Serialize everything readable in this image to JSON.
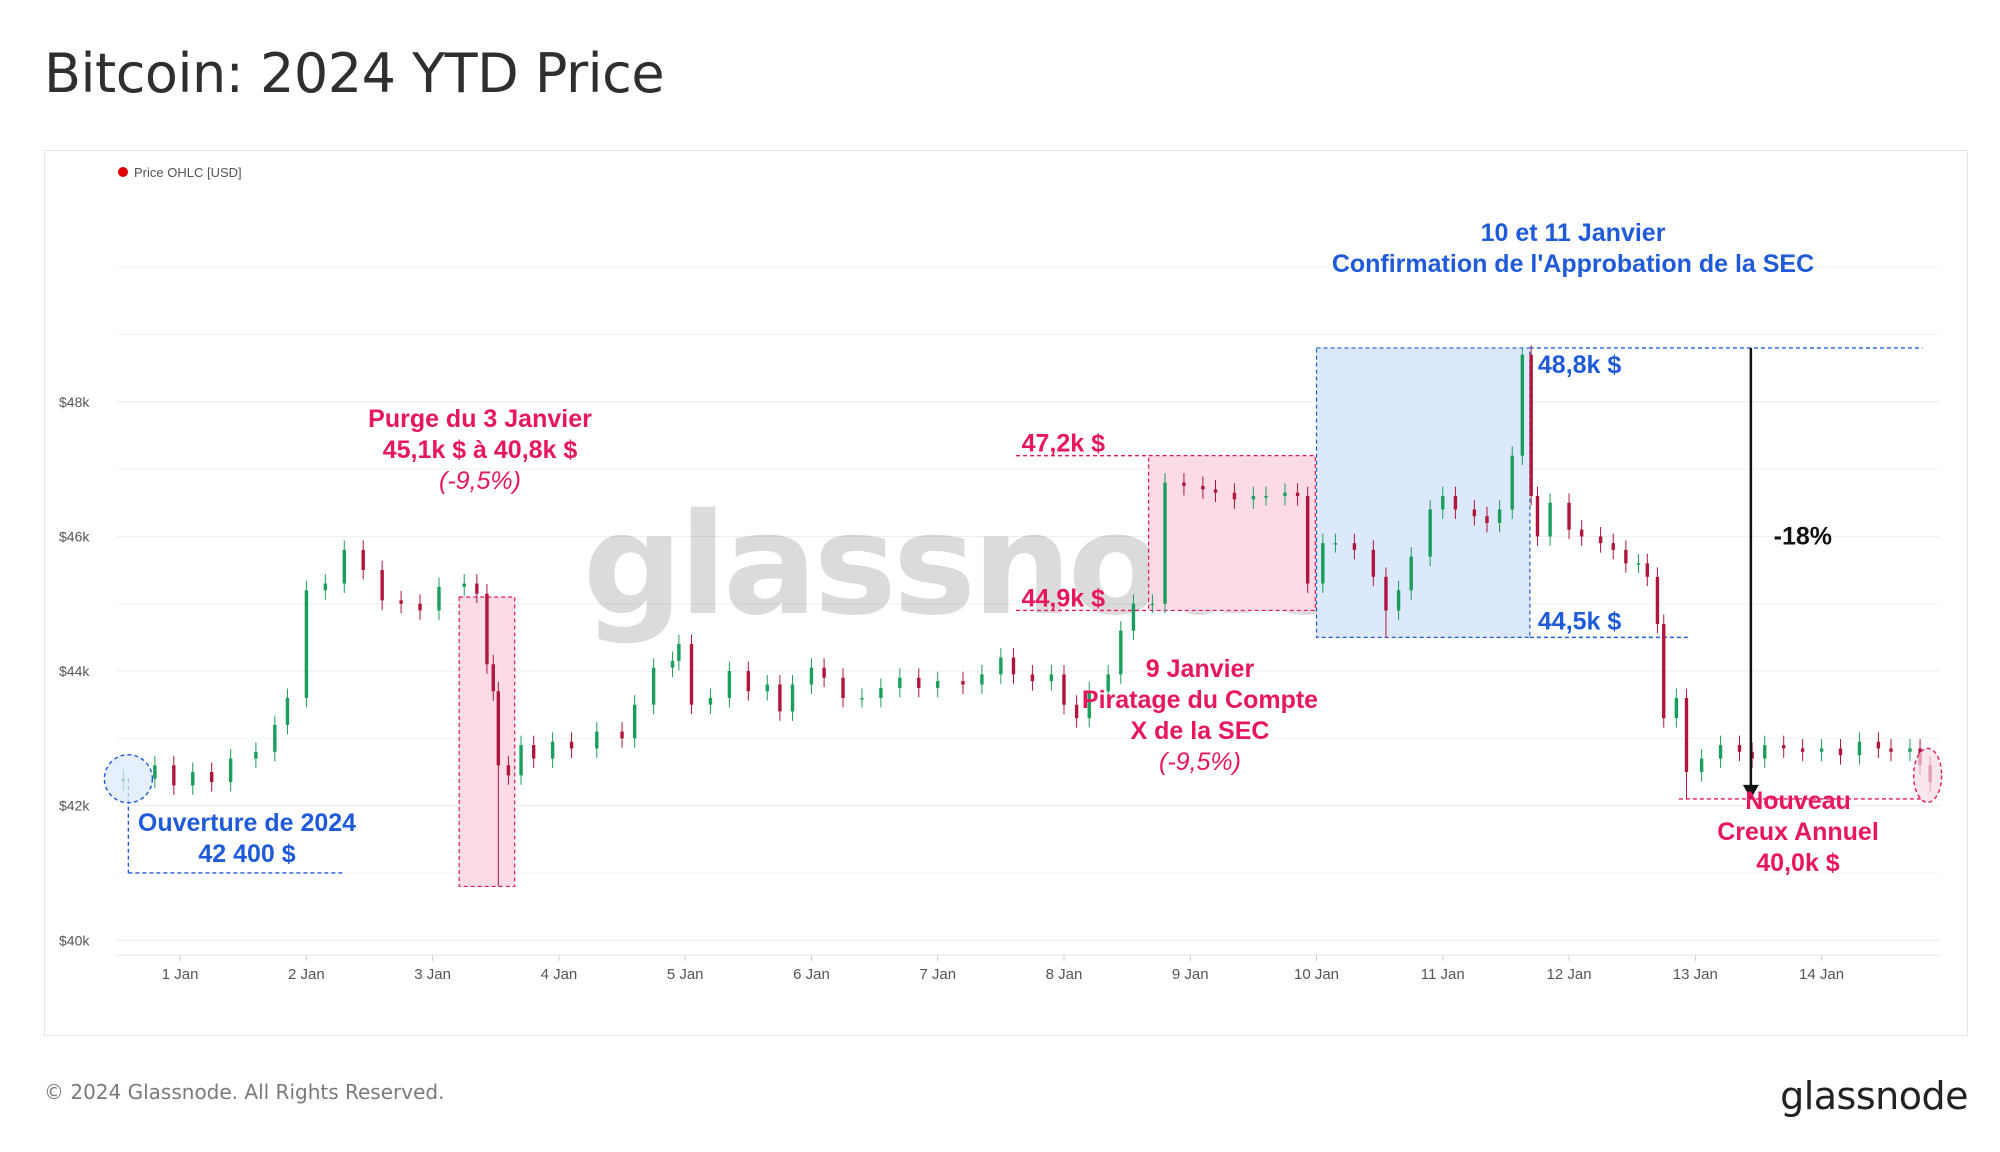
{
  "title": "Bitcoin: 2024 YTD Price",
  "footer": "© 2024 Glassnode. All Rights Reserved.",
  "brand": "glassnode",
  "watermark": "glassnode",
  "colors": {
    "up": "#1a9e5b",
    "down": "#b0153a",
    "pink": "#e8175d",
    "blue": "#1f5bd8",
    "pink_fill": "#fadbe6",
    "blue_fill": "#dce8fb"
  },
  "chart_data": {
    "type": "candlestick",
    "legend": "Price OHLC [USD]",
    "y_ticks": [
      {
        "value": 40000,
        "label": "$40k"
      },
      {
        "value": 42000,
        "label": "$42k"
      },
      {
        "value": 44000,
        "label": "$44k"
      },
      {
        "value": 46000,
        "label": "$46k"
      },
      {
        "value": 48000,
        "label": "$48k"
      }
    ],
    "ylim": [
      39900,
      50300
    ],
    "xlim": [
      0.5,
      14.93
    ],
    "x_ticks": [
      {
        "day": 1,
        "label": "1 Jan"
      },
      {
        "day": 2,
        "label": "2 Jan"
      },
      {
        "day": 3,
        "label": "3 Jan"
      },
      {
        "day": 4,
        "label": "4 Jan"
      },
      {
        "day": 5,
        "label": "5 Jan"
      },
      {
        "day": 6,
        "label": "6 Jan"
      },
      {
        "day": 7,
        "label": "7 Jan"
      },
      {
        "day": 8,
        "label": "8 Jan"
      },
      {
        "day": 9,
        "label": "9 Jan"
      },
      {
        "day": 10,
        "label": "10 Jan"
      },
      {
        "day": 11,
        "label": "11 Jan"
      },
      {
        "day": 12,
        "label": "12 Jan"
      },
      {
        "day": 13,
        "label": "13 Jan"
      },
      {
        "day": 14,
        "label": "14 Jan"
      }
    ],
    "series": [
      {
        "day": 0.55,
        "close": 42400
      },
      {
        "day": 0.8,
        "close": 42600
      },
      {
        "day": 0.95,
        "close": 42300
      },
      {
        "day": 1.1,
        "close": 42500
      },
      {
        "day": 1.25,
        "close": 42350
      },
      {
        "day": 1.4,
        "close": 42700
      },
      {
        "day": 1.6,
        "close": 42800
      },
      {
        "day": 1.75,
        "close": 43200
      },
      {
        "day": 1.85,
        "close": 43600
      },
      {
        "day": 2.0,
        "close": 45200
      },
      {
        "day": 2.15,
        "close": 45300
      },
      {
        "day": 2.3,
        "close": 45800
      },
      {
        "day": 2.45,
        "close": 45500
      },
      {
        "day": 2.6,
        "close": 45050
      },
      {
        "day": 2.75,
        "close": 45000
      },
      {
        "day": 2.9,
        "close": 44900
      },
      {
        "day": 3.05,
        "close": 45250
      },
      {
        "day": 3.25,
        "close": 45300
      },
      {
        "day": 3.35,
        "close": 45150
      },
      {
        "day": 3.43,
        "close": 44100
      },
      {
        "day": 3.48,
        "close": 43700
      },
      {
        "day": 3.52,
        "close": 42600
      },
      {
        "day": 3.6,
        "close": 42450
      },
      {
        "day": 3.7,
        "close": 42900
      },
      {
        "day": 3.8,
        "close": 42700
      },
      {
        "day": 3.95,
        "close": 42950
      },
      {
        "day": 4.1,
        "close": 42850
      },
      {
        "day": 4.3,
        "close": 43100
      },
      {
        "day": 4.5,
        "close": 43000
      },
      {
        "day": 4.6,
        "close": 43500
      },
      {
        "day": 4.75,
        "close": 44050
      },
      {
        "day": 4.9,
        "close": 44150
      },
      {
        "day": 4.95,
        "close": 44400
      },
      {
        "day": 5.05,
        "close": 43500
      },
      {
        "day": 5.2,
        "close": 43600
      },
      {
        "day": 5.35,
        "close": 44000
      },
      {
        "day": 5.5,
        "close": 43700
      },
      {
        "day": 5.65,
        "close": 43800
      },
      {
        "day": 5.75,
        "close": 43400
      },
      {
        "day": 5.85,
        "close": 43800
      },
      {
        "day": 6.0,
        "close": 44050
      },
      {
        "day": 6.1,
        "close": 43900
      },
      {
        "day": 6.25,
        "close": 43600
      },
      {
        "day": 6.4,
        "close": 43600
      },
      {
        "day": 6.55,
        "close": 43750
      },
      {
        "day": 6.7,
        "close": 43900
      },
      {
        "day": 6.85,
        "close": 43750
      },
      {
        "day": 7.0,
        "close": 43850
      },
      {
        "day": 7.2,
        "close": 43800
      },
      {
        "day": 7.35,
        "close": 43950
      },
      {
        "day": 7.5,
        "close": 44200
      },
      {
        "day": 7.6,
        "close": 43950
      },
      {
        "day": 7.75,
        "close": 43850
      },
      {
        "day": 7.9,
        "close": 43950
      },
      {
        "day": 8.0,
        "close": 43500
      },
      {
        "day": 8.1,
        "close": 43300
      },
      {
        "day": 8.2,
        "close": 43700
      },
      {
        "day": 8.35,
        "close": 43950
      },
      {
        "day": 8.45,
        "close": 44600
      },
      {
        "day": 8.55,
        "close": 45000
      },
      {
        "day": 8.7,
        "close": 45000
      },
      {
        "day": 8.8,
        "close": 46800
      },
      {
        "day": 8.95,
        "close": 46750
      },
      {
        "day": 9.1,
        "close": 46700
      },
      {
        "day": 9.2,
        "close": 46650
      },
      {
        "day": 9.35,
        "close": 46550
      },
      {
        "day": 9.5,
        "close": 46600
      },
      {
        "day": 9.6,
        "close": 46600
      },
      {
        "day": 9.75,
        "close": 46650
      },
      {
        "day": 9.85,
        "close": 46600
      },
      {
        "day": 9.93,
        "close": 45300
      },
      {
        "day": 10.05,
        "close": 45900
      },
      {
        "day": 10.15,
        "close": 45900
      },
      {
        "day": 10.3,
        "close": 45800
      },
      {
        "day": 10.45,
        "close": 45400
      },
      {
        "day": 10.55,
        "close": 44900
      },
      {
        "day": 10.65,
        "close": 45200
      },
      {
        "day": 10.75,
        "close": 45700
      },
      {
        "day": 10.9,
        "close": 46400
      },
      {
        "day": 11.0,
        "close": 46600
      },
      {
        "day": 11.1,
        "close": 46400
      },
      {
        "day": 11.25,
        "close": 46300
      },
      {
        "day": 11.35,
        "close": 46200
      },
      {
        "day": 11.45,
        "close": 46400
      },
      {
        "day": 11.55,
        "close": 47200
      },
      {
        "day": 11.63,
        "close": 48700
      },
      {
        "day": 11.7,
        "close": 46600
      },
      {
        "day": 11.75,
        "close": 46000
      },
      {
        "day": 11.85,
        "close": 46500
      },
      {
        "day": 12.0,
        "close": 46100
      },
      {
        "day": 12.1,
        "close": 46000
      },
      {
        "day": 12.25,
        "close": 45900
      },
      {
        "day": 12.35,
        "close": 45800
      },
      {
        "day": 12.45,
        "close": 45600
      },
      {
        "day": 12.55,
        "close": 45600
      },
      {
        "day": 12.62,
        "close": 45400
      },
      {
        "day": 12.7,
        "close": 44700
      },
      {
        "day": 12.75,
        "close": 43300
      },
      {
        "day": 12.85,
        "close": 43600
      },
      {
        "day": 12.93,
        "close": 42500
      },
      {
        "day": 13.05,
        "close": 42700
      },
      {
        "day": 13.2,
        "close": 42900
      },
      {
        "day": 13.35,
        "close": 42800
      },
      {
        "day": 13.45,
        "close": 42700
      },
      {
        "day": 13.55,
        "close": 42900
      },
      {
        "day": 13.7,
        "close": 42850
      },
      {
        "day": 13.85,
        "close": 42800
      },
      {
        "day": 14.0,
        "close": 42850
      },
      {
        "day": 14.15,
        "close": 42750
      },
      {
        "day": 14.3,
        "close": 42950
      },
      {
        "day": 14.45,
        "close": 42850
      },
      {
        "day": 14.55,
        "close": 42800
      },
      {
        "day": 14.7,
        "close": 42850
      },
      {
        "day": 14.78,
        "close": 42600
      },
      {
        "day": 14.86,
        "close": 42350
      }
    ],
    "annotations": {
      "open_2024": [
        "Ouverture de 2024",
        "42 400 $"
      ],
      "purge": [
        "Purge du 3 Janvier",
        "45,1k $ à 40,8k $",
        "(-9,5%)"
      ],
      "hack": [
        "9 Janvier",
        "Piratage du Compte",
        "X de la SEC",
        "(-9,5%)"
      ],
      "sec": [
        "10 et 11 Janvier",
        "Confirmation de l'Approbation de la SEC"
      ],
      "low": [
        "Nouveau",
        "Creux Annuel",
        "40,0k $"
      ],
      "level_472": "47,2k $",
      "level_449": "44,9k $",
      "level_488": "48,8k $",
      "level_445": "44,5k $",
      "drop": "-18%"
    }
  }
}
